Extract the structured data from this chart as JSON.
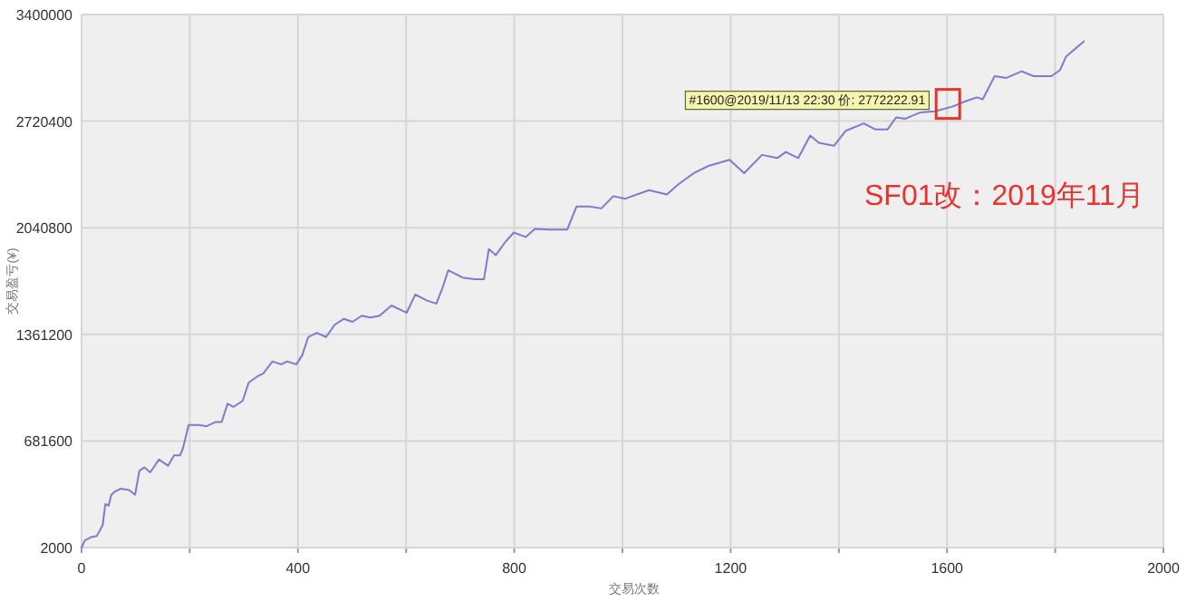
{
  "chart_data": {
    "type": "line",
    "xlabel": "交易次数",
    "ylabel": "交易盈亏(¥)",
    "series": [
      {
        "color": "#7b7bd0",
        "x": [
          0,
          6,
          17,
          28,
          33,
          39,
          44,
          50,
          55,
          61,
          72,
          88,
          99,
          107,
          116,
          127,
          143,
          160,
          171,
          182,
          187,
          198,
          215,
          231,
          248,
          259,
          270,
          281,
          298,
          309,
          325,
          336,
          353,
          369,
          380,
          397,
          408,
          419,
          435,
          452,
          468,
          485,
          501,
          518,
          534,
          551,
          573,
          601,
          617,
          639,
          656,
          667,
          678,
          705,
          727,
          744,
          753,
          766,
          782,
          799,
          821,
          838,
          865,
          898,
          915,
          939,
          961,
          983,
          1005,
          1049,
          1082,
          1104,
          1132,
          1159,
          1198,
          1225,
          1258,
          1286,
          1302,
          1325,
          1347,
          1363,
          1391,
          1413,
          1446,
          1468,
          1490,
          1506,
          1523,
          1550,
          1578,
          1611,
          1633,
          1655,
          1666,
          1688,
          1710,
          1738,
          1760,
          1793,
          1809,
          1820,
          1837,
          1853
        ],
        "values": [
          2000,
          48000,
          68000,
          76000,
          106000,
          145000,
          280000,
          269000,
          339000,
          358000,
          377000,
          369000,
          339000,
          493000,
          513000,
          482000,
          563000,
          524000,
          590000,
          590000,
          629000,
          783000,
          783000,
          776000,
          803000,
          803000,
          919000,
          899000,
          938000,
          1054000,
          1093000,
          1112000,
          1189000,
          1170000,
          1189000,
          1170000,
          1228000,
          1344000,
          1371000,
          1344000,
          1422000,
          1460000,
          1441000,
          1480000,
          1468000,
          1480000,
          1545000,
          1499000,
          1615000,
          1576000,
          1557000,
          1654000,
          1770000,
          1723000,
          1712000,
          1712000,
          1905000,
          1866000,
          1944000,
          2010000,
          1982000,
          2033000,
          2029000,
          2029000,
          2176000,
          2176000,
          2164000,
          2242000,
          2226000,
          2280000,
          2253000,
          2319000,
          2389000,
          2435000,
          2474000,
          2389000,
          2505000,
          2485000,
          2524000,
          2485000,
          2628000,
          2582000,
          2563000,
          2659000,
          2706000,
          2667000,
          2667000,
          2744000,
          2736000,
          2775000,
          2783000,
          2814000,
          2845000,
          2872000,
          2860000,
          3007000,
          2996000,
          3038000,
          3007000,
          3007000,
          3046000,
          3131000,
          3182000,
          3228000
        ]
      }
    ],
    "xlim": [
      0,
      2000
    ],
    "ylim": [
      2000,
      3400000
    ],
    "xticks": [
      0,
      {
        "value": 200,
        "label": null
      },
      400,
      {
        "value": 600,
        "label": null
      },
      800,
      {
        "value": 1000,
        "label": null
      },
      1200,
      {
        "value": 1400,
        "label": null
      },
      1600,
      {
        "value": 1800,
        "label": null
      },
      2000
    ],
    "yticks": [
      2000,
      681600,
      1361200,
      2040800,
      2720400,
      3400000
    ],
    "grid": true,
    "annotations": [
      {
        "text": "#1600@2019/11/13 22:30 价: 2772222.91",
        "x": 1600,
        "y": 2772222.91
      },
      "SF01改：2019年11月"
    ]
  }
}
